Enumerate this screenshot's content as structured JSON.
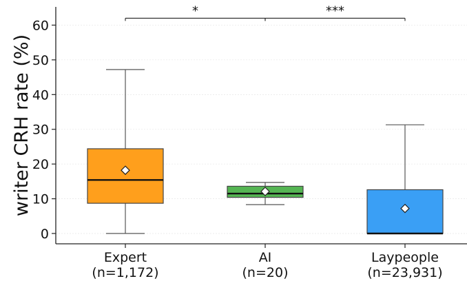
{
  "chart_data": {
    "type": "boxplot",
    "ylabel": "writer CRH rate (%)",
    "ylim": [
      -3,
      65
    ],
    "yticks": [
      "0",
      "10",
      "20",
      "30",
      "40",
      "50",
      "60"
    ],
    "grid": "horizontal-light",
    "categories": [
      {
        "name": "Expert",
        "n_label": "(n=1,172)",
        "color": "#ff9f1c",
        "whisker_low": 0,
        "q1": 8.7,
        "median": 15.4,
        "q3": 24.4,
        "whisker_high": 47.2,
        "mean": 18.2
      },
      {
        "name": "AI",
        "n_label": "(n=20)",
        "color": "#55b553",
        "whisker_low": 8.3,
        "q1": 10.4,
        "median": 11.5,
        "q3": 13.6,
        "whisker_high": 14.7,
        "mean": 12.1
      },
      {
        "name": "Laypeople",
        "n_label": "(n=23,931)",
        "color": "#3a9ff5",
        "whisker_low": 0,
        "q1": 0,
        "median": 0,
        "q3": 12.6,
        "whisker_high": 31.3,
        "mean": 7.2
      }
    ],
    "significance": [
      {
        "from": 0,
        "to": 1,
        "label": "*",
        "y": 62
      },
      {
        "from": 1,
        "to": 2,
        "label": "***",
        "y": 62
      }
    ]
  }
}
